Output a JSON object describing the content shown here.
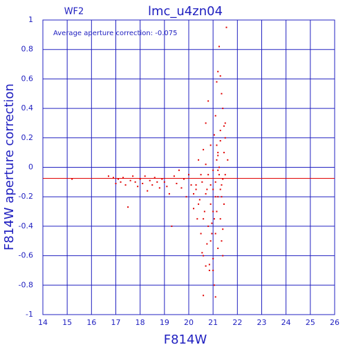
{
  "chart_data": {
    "type": "scatter",
    "title": "lmc_u4zn04",
    "subtitle": "WF2",
    "annotation": "Average aperture correction: -0.075",
    "x_label": "F814W",
    "y_label": "F814W aperture correction",
    "xlim": [
      14,
      26
    ],
    "ylim": [
      -1,
      1
    ],
    "xticks": [
      14,
      15,
      16,
      17,
      18,
      19,
      20,
      21,
      22,
      23,
      24,
      25,
      26
    ],
    "yticks": [
      -1,
      -0.8,
      -0.6,
      -0.4,
      -0.2,
      0,
      0.2,
      0.4,
      0.6,
      0.8,
      1
    ],
    "grid": true,
    "average_line": -0.075,
    "color": "#e00000",
    "axis_color": "#2020c0",
    "x": [
      15.2,
      16.7,
      16.9,
      17.0,
      17.1,
      17.2,
      17.3,
      17.4,
      17.5,
      17.6,
      17.7,
      17.8,
      17.9,
      18.0,
      18.1,
      18.2,
      18.3,
      18.4,
      18.5,
      18.6,
      18.7,
      18.8,
      18.9,
      19.0,
      19.1,
      19.2,
      19.3,
      19.4,
      19.5,
      19.6,
      19.7,
      19.8,
      19.9,
      20.0,
      20.1,
      20.2,
      20.3,
      20.35,
      20.4,
      20.45,
      20.5,
      20.55,
      20.6,
      20.6,
      20.65,
      20.7,
      20.7,
      20.75,
      20.8,
      20.8,
      20.85,
      20.9,
      20.9,
      20.95,
      21.0,
      21.0,
      21.0,
      21.05,
      21.05,
      21.1,
      21.1,
      21.1,
      21.15,
      21.15,
      21.2,
      21.2,
      21.2,
      21.25,
      21.25,
      21.3,
      21.3,
      21.3,
      21.35,
      21.35,
      21.4,
      21.4,
      21.45,
      21.45,
      21.5,
      21.5,
      21.55,
      21.6,
      20.5,
      20.6,
      20.7,
      20.8,
      20.9,
      21.0,
      21.1,
      21.2,
      21.3,
      21.4,
      20.4,
      20.55,
      20.75,
      20.95,
      21.15,
      21.35,
      21.05,
      21.25,
      20.85,
      21.3,
      21.4,
      21.2,
      21.1,
      21.0,
      20.9,
      20.7,
      20.6,
      20.3,
      20.2,
      21.5,
      21.45,
      21.35,
      21.2,
      21.15
    ],
    "y": [
      -0.08,
      -0.06,
      -0.07,
      -0.11,
      -0.08,
      -0.1,
      -0.07,
      -0.12,
      -0.27,
      -0.09,
      -0.06,
      -0.1,
      -0.13,
      -0.08,
      -0.11,
      -0.06,
      -0.16,
      -0.09,
      -0.12,
      -0.07,
      -0.1,
      -0.14,
      -0.08,
      -0.1,
      -0.13,
      -0.18,
      -0.4,
      -0.06,
      -0.11,
      -0.02,
      -0.14,
      -0.08,
      -0.2,
      -0.05,
      -0.12,
      -0.28,
      -0.15,
      -0.35,
      0.05,
      -0.22,
      -0.45,
      -0.1,
      -0.6,
      0.12,
      -0.3,
      -0.18,
      0.3,
      -0.52,
      0.45,
      -0.05,
      -0.7,
      0.15,
      -0.25,
      -0.38,
      -0.02,
      -0.15,
      -0.62,
      0.22,
      -0.8,
      0.35,
      -0.1,
      -0.45,
      0.58,
      -0.3,
      0.08,
      -0.2,
      -0.55,
      0.82,
      -0.05,
      0.62,
      -0.35,
      0.25,
      0.5,
      -0.12,
      0.4,
      -0.6,
      0.1,
      -0.25,
      0.2,
      -0.05,
      0.95,
      0.05,
      -0.05,
      -0.35,
      0.02,
      -0.4,
      -0.12,
      -0.3,
      -0.2,
      0.1,
      -0.15,
      -0.08,
      -0.25,
      -0.58,
      -0.15,
      -0.45,
      0.15,
      -0.2,
      -0.35,
      0.0,
      -0.66,
      0.18,
      -0.42,
      0.65,
      -0.88,
      -0.7,
      -0.5,
      -0.67,
      -0.87,
      -0.12,
      -0.18,
      0.3,
      0.28,
      -0.5,
      -0.02,
      0.05
    ]
  }
}
